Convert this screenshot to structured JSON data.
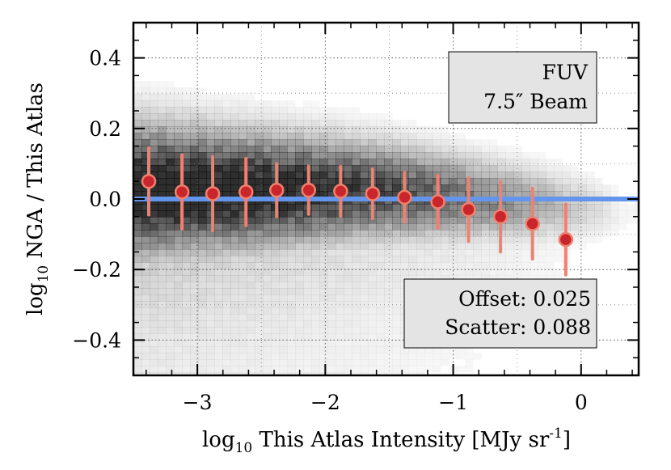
{
  "chart_data": {
    "type": "scatter",
    "subtype": "binned medians with error bars over 2-D density",
    "xlabel": {
      "prefix": "log",
      "sub": "10",
      "main": " This Atlas Intensity [MJy sr",
      "sup": "-1",
      "suffix": "]"
    },
    "ylabel": {
      "prefix": "log",
      "sub": "10",
      "main": " NGA / This Atlas"
    },
    "xlim": [
      -3.5,
      0.45
    ],
    "ylim": [
      -0.5,
      0.5
    ],
    "xticks": [
      -3,
      -2,
      -1,
      0
    ],
    "xtick_labels": [
      "−3",
      "−2",
      "−1",
      "0"
    ],
    "yticks": [
      0.4,
      0.2,
      0.0,
      -0.2,
      -0.4
    ],
    "ytick_labels": [
      "0.4",
      "0.2",
      "0.0",
      "−0.2",
      "−0.4"
    ],
    "grid": true,
    "reference_line": {
      "y": 0.0,
      "color": "#6495ED"
    },
    "series": [
      {
        "x": [
          -3.38,
          -3.12,
          -2.88,
          -2.62,
          -2.38,
          -2.13,
          -1.88,
          -1.63,
          -1.38,
          -1.12,
          -0.88,
          -0.63,
          -0.38,
          -0.12
        ],
        "y": [
          0.05,
          0.02,
          0.015,
          0.02,
          0.025,
          0.025,
          0.022,
          0.015,
          0.005,
          -0.008,
          -0.03,
          -0.05,
          -0.07,
          -0.115
        ],
        "yerr": [
          0.095,
          0.105,
          0.105,
          0.095,
          0.075,
          0.068,
          0.07,
          0.07,
          0.07,
          0.075,
          0.09,
          0.1,
          0.1,
          0.1
        ],
        "marker_color": "#C8262A",
        "errorbar_color": "#F08070"
      }
    ],
    "annotations": [
      {
        "position": "top-right",
        "lines": [
          "FUV",
          "7.5″ Beam"
        ]
      },
      {
        "position": "bottom-right",
        "lines": [
          "Offset: 0.025",
          "Scatter: 0.088"
        ]
      }
    ],
    "colors": {
      "density": "#000000",
      "reference_line": "#6495ED",
      "marker": "#C8262A",
      "errorbar": "#F08070",
      "box_fill": "#E4E4E4"
    }
  }
}
